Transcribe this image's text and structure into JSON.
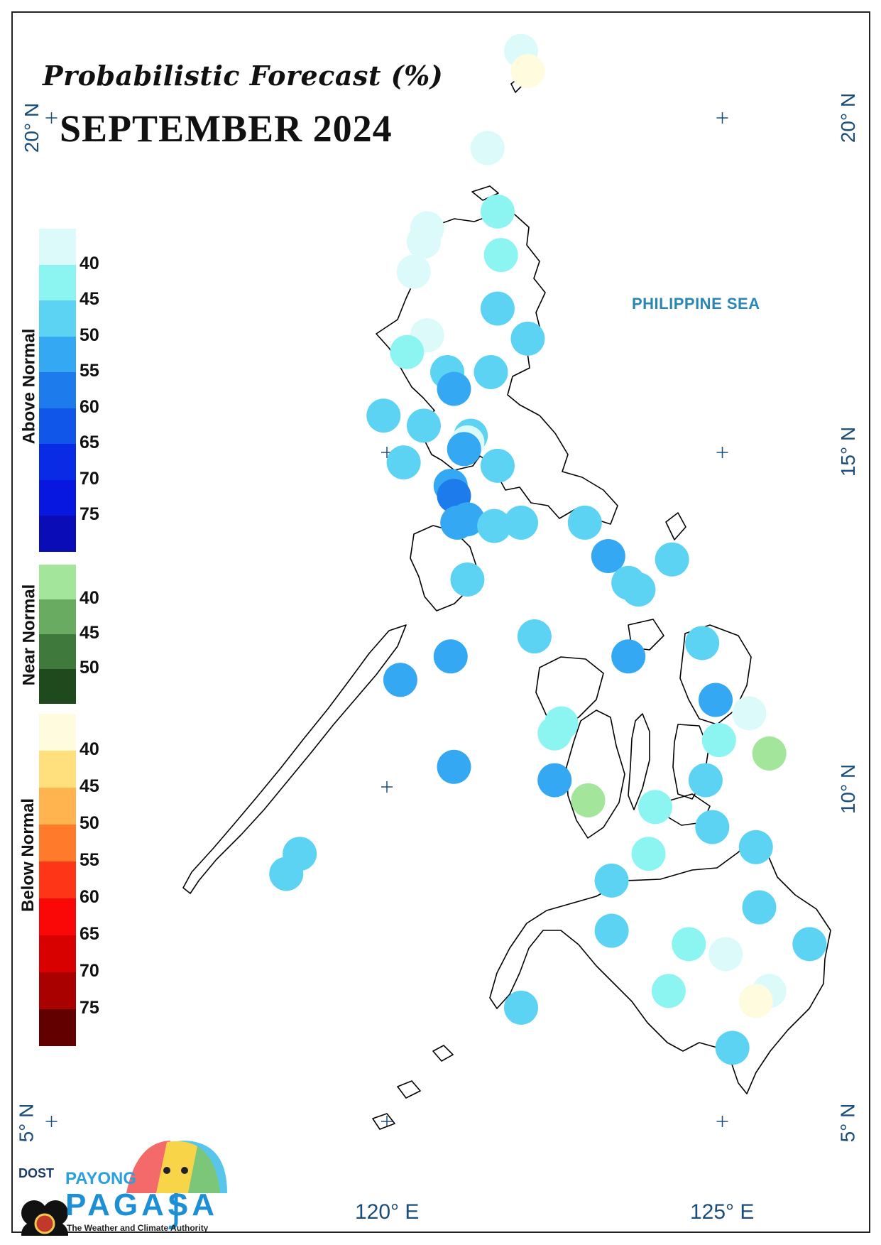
{
  "title": "Probabilistic Forecast (%)",
  "subtitle": "SEPTEMBER 2024",
  "sea_label": "PHILIPPINE SEA",
  "lat_labels": {
    "lat20": "20° N",
    "lat15": "15° N",
    "lat10": "10° N",
    "lat5": "5° N"
  },
  "lon_labels": {
    "lon120": "120° E",
    "lon125": "125° E"
  },
  "legend": {
    "above": {
      "title": "Above Normal",
      "colors": [
        "#dcfafa",
        "#8cf5f2",
        "#5dd3f3",
        "#34a8f3",
        "#1e7bec",
        "#1056e8",
        "#0a2be6",
        "#0717e0",
        "#0a0cb8"
      ],
      "ticks": [
        "40",
        "45",
        "50",
        "55",
        "60",
        "65",
        "70",
        "75"
      ]
    },
    "near": {
      "title": "Near Normal",
      "colors": [
        "#a3e59a",
        "#6aab62",
        "#3f7a3c",
        "#1f4a1e"
      ],
      "ticks": [
        "40",
        "45",
        "50"
      ]
    },
    "below": {
      "title": "Below Normal",
      "colors": [
        "#fffbdf",
        "#ffe07d",
        "#ffb44f",
        "#ff7a2a",
        "#ff3518",
        "#fa0808",
        "#d90000",
        "#a90000",
        "#620000"
      ],
      "ticks": [
        "40",
        "45",
        "50",
        "55",
        "60",
        "65",
        "70",
        "75"
      ]
    }
  },
  "logo": {
    "org": "DOST",
    "brand_top": "PAYONG",
    "brand": "PAGASA",
    "tagline": "The Weather and Climate Authority"
  },
  "stations": [
    {
      "lat": 21.0,
      "lon": 122.0,
      "color": "#dcfafa"
    },
    {
      "lat": 20.7,
      "lon": 122.1,
      "color": "#fffbdf"
    },
    {
      "lat": 19.55,
      "lon": 121.5,
      "color": "#dcfafa"
    },
    {
      "lat": 18.6,
      "lon": 121.65,
      "color": "#8cf5f2"
    },
    {
      "lat": 18.35,
      "lon": 120.6,
      "color": "#dcfafa"
    },
    {
      "lat": 18.15,
      "lon": 120.55,
      "color": "#dcfafa"
    },
    {
      "lat": 17.95,
      "lon": 121.7,
      "color": "#8cf5f2"
    },
    {
      "lat": 17.7,
      "lon": 120.4,
      "color": "#dcfafa"
    },
    {
      "lat": 17.15,
      "lon": 121.65,
      "color": "#5dd3f3"
    },
    {
      "lat": 16.75,
      "lon": 120.6,
      "color": "#dcfafa"
    },
    {
      "lat": 16.7,
      "lon": 122.1,
      "color": "#5dd3f3"
    },
    {
      "lat": 16.5,
      "lon": 120.3,
      "color": "#8cf5f2"
    },
    {
      "lat": 16.2,
      "lon": 121.55,
      "color": "#5dd3f3"
    },
    {
      "lat": 16.2,
      "lon": 120.9,
      "color": "#5dd3f3"
    },
    {
      "lat": 15.95,
      "lon": 121.0,
      "color": "#34a8f3"
    },
    {
      "lat": 15.55,
      "lon": 119.95,
      "color": "#5dd3f3"
    },
    {
      "lat": 15.4,
      "lon": 120.55,
      "color": "#5dd3f3"
    },
    {
      "lat": 15.25,
      "lon": 121.25,
      "color": "#5dd3f3"
    },
    {
      "lat": 15.15,
      "lon": 121.2,
      "color": "#dcfafa"
    },
    {
      "lat": 15.05,
      "lon": 121.15,
      "color": "#34a8f3"
    },
    {
      "lat": 14.85,
      "lon": 120.25,
      "color": "#5dd3f3"
    },
    {
      "lat": 14.8,
      "lon": 121.65,
      "color": "#5dd3f3"
    },
    {
      "lat": 14.5,
      "lon": 120.95,
      "color": "#34a8f3"
    },
    {
      "lat": 14.35,
      "lon": 121.0,
      "color": "#1e7bec"
    },
    {
      "lat": 14.0,
      "lon": 121.2,
      "color": "#34a8f3"
    },
    {
      "lat": 13.95,
      "lon": 121.05,
      "color": "#34a8f3"
    },
    {
      "lat": 13.9,
      "lon": 121.6,
      "color": "#5dd3f3"
    },
    {
      "lat": 13.95,
      "lon": 122.0,
      "color": "#5dd3f3"
    },
    {
      "lat": 13.95,
      "lon": 122.95,
      "color": "#5dd3f3"
    },
    {
      "lat": 13.45,
      "lon": 123.3,
      "color": "#34a8f3"
    },
    {
      "lat": 13.4,
      "lon": 124.25,
      "color": "#5dd3f3"
    },
    {
      "lat": 13.1,
      "lon": 121.2,
      "color": "#5dd3f3"
    },
    {
      "lat": 13.05,
      "lon": 123.6,
      "color": "#5dd3f3"
    },
    {
      "lat": 12.95,
      "lon": 123.75,
      "color": "#5dd3f3"
    },
    {
      "lat": 12.25,
      "lon": 122.2,
      "color": "#5dd3f3"
    },
    {
      "lat": 12.15,
      "lon": 124.7,
      "color": "#5dd3f3"
    },
    {
      "lat": 11.95,
      "lon": 120.95,
      "color": "#34a8f3"
    },
    {
      "lat": 11.95,
      "lon": 123.6,
      "color": "#34a8f3"
    },
    {
      "lat": 11.6,
      "lon": 120.2,
      "color": "#34a8f3"
    },
    {
      "lat": 11.3,
      "lon": 124.9,
      "color": "#34a8f3"
    },
    {
      "lat": 11.1,
      "lon": 125.4,
      "color": "#dcfafa"
    },
    {
      "lat": 10.95,
      "lon": 122.6,
      "color": "#8cf5f2"
    },
    {
      "lat": 10.8,
      "lon": 122.5,
      "color": "#8cf5f2"
    },
    {
      "lat": 10.7,
      "lon": 124.95,
      "color": "#8cf5f2"
    },
    {
      "lat": 10.5,
      "lon": 125.7,
      "color": "#a3e59a"
    },
    {
      "lat": 10.3,
      "lon": 121.0,
      "color": "#34a8f3"
    },
    {
      "lat": 10.1,
      "lon": 122.5,
      "color": "#34a8f3"
    },
    {
      "lat": 10.1,
      "lon": 124.75,
      "color": "#5dd3f3"
    },
    {
      "lat": 9.8,
      "lon": 123.0,
      "color": "#a3e59a"
    },
    {
      "lat": 9.7,
      "lon": 124.0,
      "color": "#8cf5f2"
    },
    {
      "lat": 9.4,
      "lon": 124.85,
      "color": "#5dd3f3"
    },
    {
      "lat": 9.1,
      "lon": 125.5,
      "color": "#5dd3f3"
    },
    {
      "lat": 9.0,
      "lon": 118.7,
      "color": "#5dd3f3"
    },
    {
      "lat": 8.7,
      "lon": 118.5,
      "color": "#5dd3f3"
    },
    {
      "lat": 9.0,
      "lon": 123.9,
      "color": "#8cf5f2"
    },
    {
      "lat": 8.6,
      "lon": 123.35,
      "color": "#5dd3f3"
    },
    {
      "lat": 8.2,
      "lon": 125.55,
      "color": "#5dd3f3"
    },
    {
      "lat": 7.85,
      "lon": 123.35,
      "color": "#5dd3f3"
    },
    {
      "lat": 7.65,
      "lon": 124.5,
      "color": "#8cf5f2"
    },
    {
      "lat": 7.65,
      "lon": 126.3,
      "color": "#5dd3f3"
    },
    {
      "lat": 7.5,
      "lon": 125.05,
      "color": "#dcfafa"
    },
    {
      "lat": 6.95,
      "lon": 124.2,
      "color": "#8cf5f2"
    },
    {
      "lat": 6.95,
      "lon": 125.7,
      "color": "#dcfafa"
    },
    {
      "lat": 6.8,
      "lon": 125.5,
      "color": "#fffbdf"
    },
    {
      "lat": 6.7,
      "lon": 122.0,
      "color": "#5dd3f3"
    },
    {
      "lat": 6.1,
      "lon": 125.15,
      "color": "#5dd3f3"
    }
  ]
}
